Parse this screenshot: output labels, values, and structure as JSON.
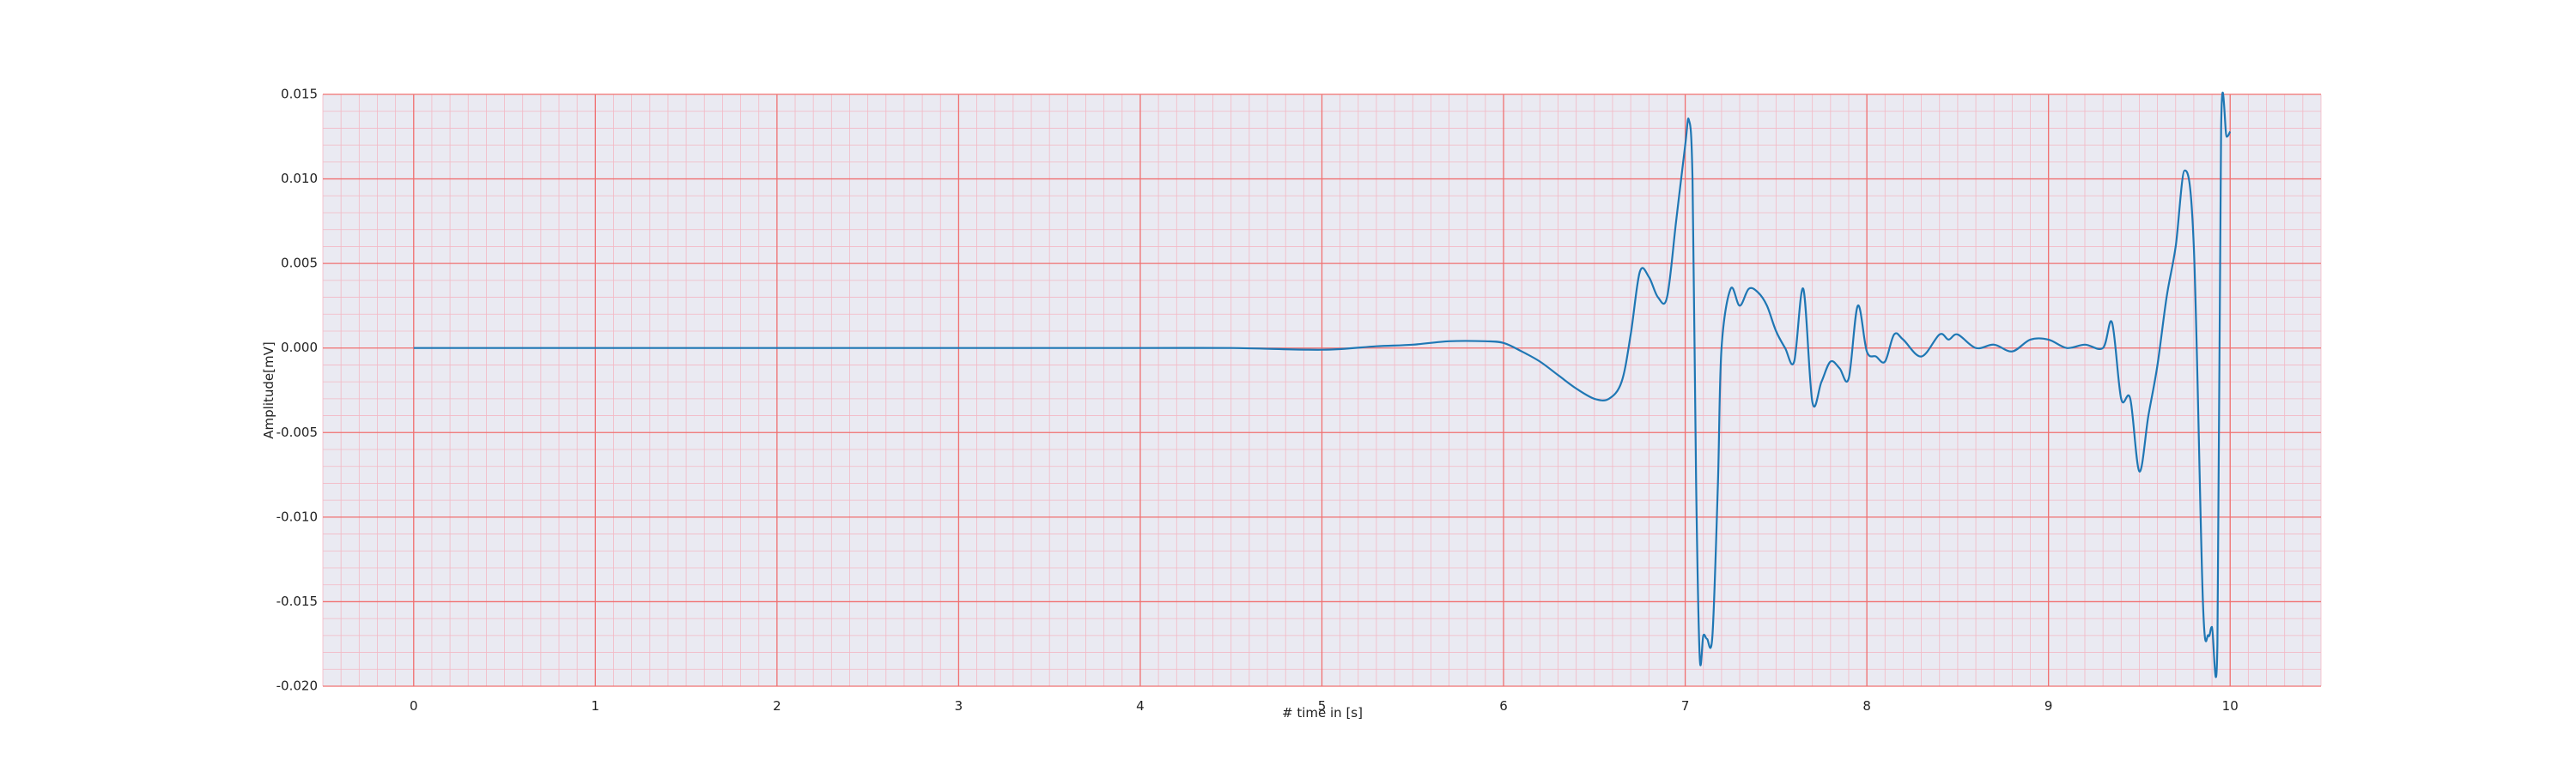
{
  "chart_data": {
    "type": "line",
    "title": "",
    "xlabel": "# time in [s]",
    "ylabel": "Amplitude[mV]",
    "xlim": [
      -0.5,
      10.5
    ],
    "ylim": [
      -0.02,
      0.015
    ],
    "x_ticks": [
      0,
      1,
      2,
      3,
      4,
      5,
      6,
      7,
      8,
      9,
      10
    ],
    "x_tick_labels": [
      "0",
      "1",
      "2",
      "3",
      "4",
      "5",
      "6",
      "7",
      "8",
      "9",
      "10"
    ],
    "y_ticks": [
      -0.02,
      -0.015,
      -0.01,
      -0.005,
      0.0,
      0.005,
      0.01,
      0.015
    ],
    "y_tick_labels": [
      "-0.020",
      "-0.015",
      "-0.010",
      "-0.005",
      "0.000",
      "0.005",
      "0.010",
      "0.015"
    ],
    "grid": true,
    "minor_grid": true,
    "colors": {
      "plot_background": "#eaeaf2",
      "major_grid": "#f07070",
      "minor_grid": "#f3b8c4",
      "line": "#1f77b4"
    },
    "series": [
      {
        "x": [
          0,
          0.5,
          1,
          1.5,
          2,
          2.5,
          3,
          3.5,
          4,
          4.5,
          5,
          5.3,
          5.5,
          5.7,
          5.9,
          6.0,
          6.1,
          6.2,
          6.3,
          6.4,
          6.5,
          6.58,
          6.65,
          6.7,
          6.75,
          6.8,
          6.85,
          6.9,
          6.95,
          7.0,
          7.02,
          7.04,
          7.06,
          7.08,
          7.1,
          7.12,
          7.15,
          7.18,
          7.2,
          7.25,
          7.3,
          7.35,
          7.4,
          7.45,
          7.5,
          7.55,
          7.6,
          7.65,
          7.7,
          7.75,
          7.8,
          7.85,
          7.9,
          7.95,
          8.0,
          8.05,
          8.1,
          8.15,
          8.2,
          8.3,
          8.4,
          8.45,
          8.5,
          8.6,
          8.7,
          8.8,
          8.9,
          9.0,
          9.1,
          9.2,
          9.3,
          9.35,
          9.4,
          9.45,
          9.5,
          9.55,
          9.6,
          9.65,
          9.7,
          9.75,
          9.8,
          9.85,
          9.88,
          9.9,
          9.93,
          9.95,
          9.98,
          10.0
        ],
        "values": [
          0.0,
          0.0,
          0.0,
          0.0,
          0.0,
          0.0,
          0.0,
          0.0,
          0.0,
          0.0,
          -0.0001,
          0.0001,
          0.0002,
          0.0004,
          0.0004,
          0.0003,
          -0.0002,
          -0.0008,
          -0.0016,
          -0.0024,
          -0.003,
          -0.003,
          -0.002,
          0.0008,
          0.0045,
          0.0042,
          0.003,
          0.003,
          0.0075,
          0.012,
          0.0135,
          0.01,
          -0.008,
          -0.0183,
          -0.017,
          -0.0172,
          -0.017,
          -0.008,
          0.0,
          0.0035,
          0.0025,
          0.0035,
          0.0033,
          0.0025,
          0.001,
          0.0,
          -0.0008,
          0.0035,
          -0.0032,
          -0.002,
          -0.0008,
          -0.0012,
          -0.0018,
          0.0025,
          -0.0002,
          -0.0005,
          -0.0008,
          0.0008,
          0.0005,
          -0.0005,
          0.0008,
          0.0005,
          0.0008,
          0.0,
          0.0002,
          -0.0002,
          0.0005,
          0.0005,
          0.0,
          0.0002,
          0.0,
          0.0015,
          -0.003,
          -0.003,
          -0.0073,
          -0.004,
          -0.001,
          0.003,
          0.006,
          0.0105,
          0.006,
          -0.015,
          -0.017,
          -0.0165,
          -0.0175,
          0.013,
          0.0125,
          0.0128
        ]
      }
    ]
  }
}
